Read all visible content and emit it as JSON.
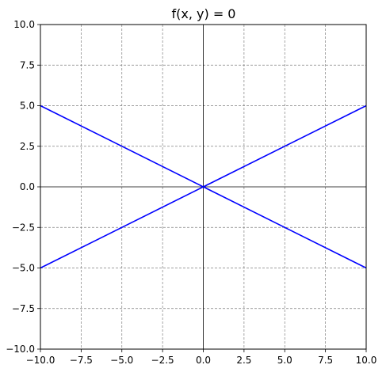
{
  "chart_data": {
    "type": "line",
    "title": "f(x, y) = 0",
    "xlabel": "",
    "ylabel": "",
    "xlim": [
      -10,
      10
    ],
    "ylim": [
      -10,
      10
    ],
    "grid": true,
    "xticks": [
      -10,
      -7.5,
      -5,
      -2.5,
      0,
      2.5,
      5,
      7.5,
      10
    ],
    "yticks": [
      -10,
      -7.5,
      -5,
      -2.5,
      0,
      2.5,
      5,
      7.5,
      10
    ],
    "xtick_labels": [
      "−10.0",
      "−7.5",
      "−5.0",
      "−2.5",
      "0.0",
      "2.5",
      "5.0",
      "7.5",
      "10.0"
    ],
    "ytick_labels": [
      "−10.0",
      "−7.5",
      "−5.0",
      "−2.5",
      "0.0",
      "2.5",
      "5.0",
      "7.5",
      "10.0"
    ],
    "line_color": "#0000ff",
    "series": [
      {
        "x": [
          -10,
          0,
          10
        ],
        "y": [
          -5,
          0,
          5
        ]
      },
      {
        "x": [
          -10,
          0,
          10
        ],
        "y": [
          5,
          0,
          -5
        ]
      }
    ]
  }
}
